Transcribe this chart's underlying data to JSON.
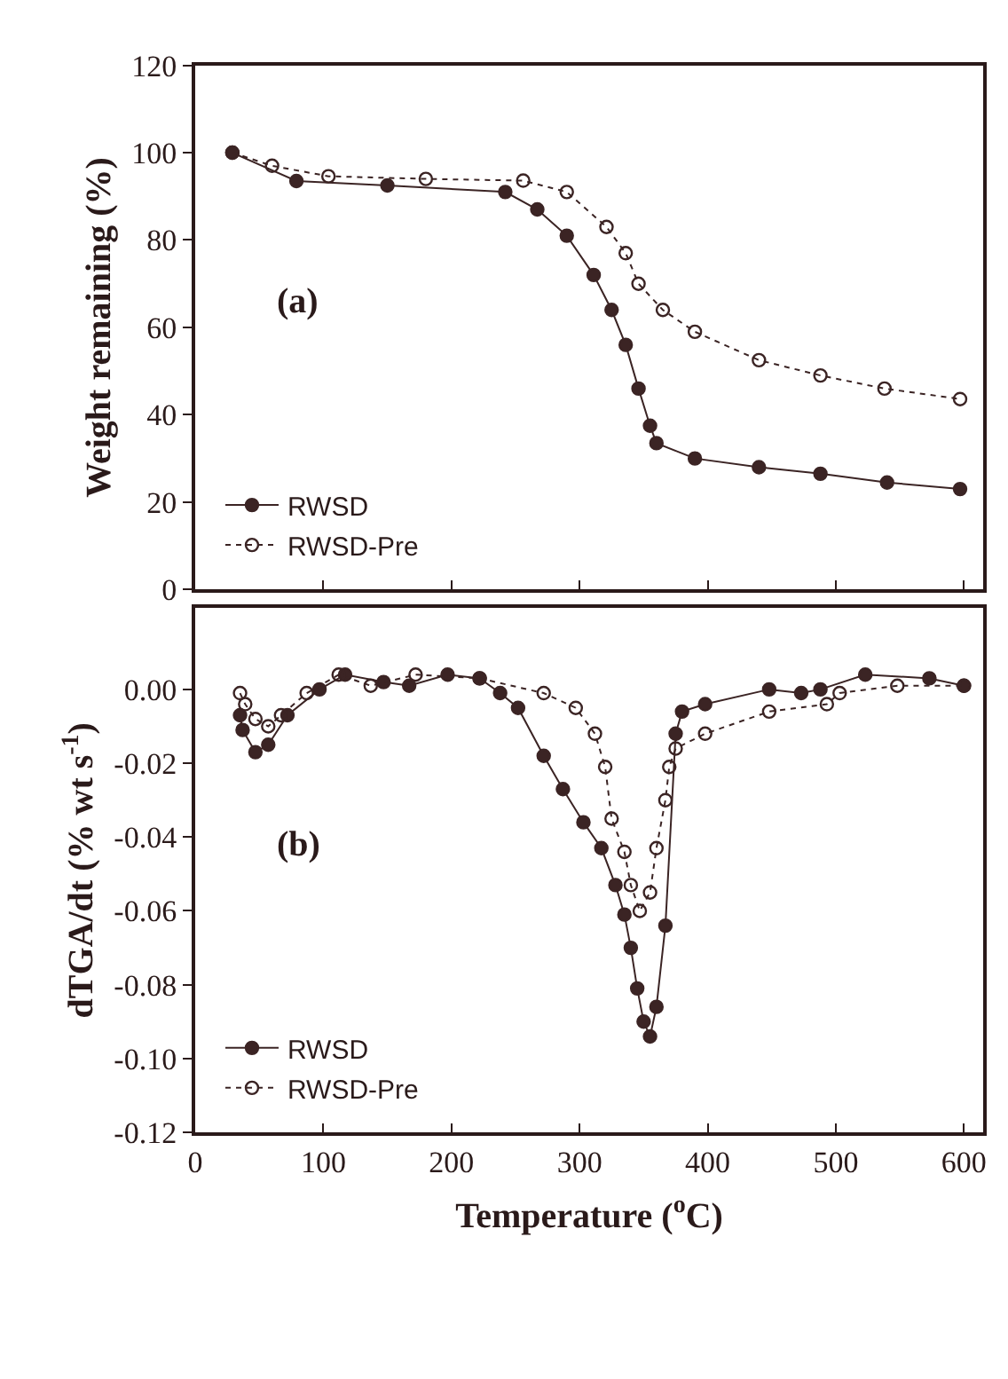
{
  "chart_data": [
    {
      "type": "line",
      "ylabel": "Weight remaining (%)",
      "annotations": [
        "(a)"
      ],
      "xlim": [
        0,
        615
      ],
      "xticks": [
        0,
        100,
        200,
        300,
        400,
        500,
        600
      ],
      "ylim": [
        0,
        120
      ],
      "yticks": [
        0,
        20,
        40,
        60,
        80,
        100,
        120
      ],
      "tick_labels": "y",
      "legend": "bottom left",
      "series": [
        {
          "name": "RWSD",
          "color": "#3b2424",
          "marker": "circle",
          "line_style": "solid",
          "x": [
            29,
            79,
            150,
            242,
            267,
            290,
            311,
            325,
            336,
            346,
            355,
            360,
            390,
            440,
            488,
            540,
            597
          ],
          "values": [
            100,
            93.5,
            92.5,
            91,
            87,
            81,
            72,
            64,
            56,
            46,
            37.5,
            33.5,
            30,
            28,
            26.5,
            24.5,
            23
          ]
        },
        {
          "name": "RWSD-Pre",
          "color": "#3b2424",
          "marker": "circle-open",
          "line_style": "dotted",
          "x": [
            29,
            60,
            104,
            180,
            256,
            290,
            321,
            336,
            346,
            365,
            390,
            440,
            488,
            538,
            597
          ],
          "values": [
            100,
            97,
            94.6,
            94,
            93.6,
            91,
            83,
            77,
            70,
            64,
            59,
            52.5,
            49,
            46,
            43.6
          ]
        }
      ]
    },
    {
      "type": "line",
      "xlabel": "Temperature ($^{o}$C)",
      "ylabel": "dTGA/dt (% wt s$^{-1}$)",
      "annotations": [
        "(b)"
      ],
      "xlim": [
        0,
        615
      ],
      "xticks": [
        0,
        100,
        200,
        300,
        400,
        500,
        600
      ],
      "ylim": [
        -0.12,
        0.022
      ],
      "yticks": [
        {
          "value": 0,
          "label": "0.00"
        },
        {
          "value": -0.02,
          "label": "-0.02"
        },
        {
          "value": -0.04,
          "label": "-0.04"
        },
        {
          "value": -0.06,
          "label": "-0.06"
        },
        {
          "value": -0.08,
          "label": "-0.08"
        },
        {
          "value": -0.1,
          "label": "-0.10"
        },
        {
          "value": -0.12,
          "label": "-0.12"
        }
      ],
      "legend": "bottom left",
      "series": [
        {
          "name": "RWSD",
          "color": "#3b2424",
          "marker": "circle",
          "line_style": "solid",
          "x": [
            35,
            37,
            47,
            57,
            72,
            97,
            117,
            147,
            167,
            197,
            222,
            238,
            252,
            272,
            287,
            303,
            317,
            328,
            335,
            340,
            345,
            350,
            355,
            360,
            367,
            375,
            380,
            398,
            448,
            473,
            488,
            523,
            573,
            600
          ],
          "values": [
            -0.007,
            -0.011,
            -0.017,
            -0.015,
            -0.007,
            0.0,
            0.004,
            0.002,
            0.001,
            0.004,
            0.003,
            -0.001,
            -0.005,
            -0.018,
            -0.027,
            -0.036,
            -0.043,
            -0.053,
            -0.061,
            -0.07,
            -0.081,
            -0.09,
            -0.094,
            -0.086,
            -0.064,
            -0.012,
            -0.006,
            -0.004,
            0.0,
            -0.001,
            0.0,
            0.004,
            0.003,
            0.001
          ]
        },
        {
          "name": "RWSD-Pre",
          "color": "#3b2424",
          "marker": "circle-open",
          "line_style": "dotted",
          "x": [
            35,
            39,
            47,
            57,
            67,
            87,
            112,
            137,
            172,
            222,
            272,
            297,
            312,
            320,
            325,
            335,
            340,
            347,
            355,
            360,
            367,
            370,
            375,
            398,
            448,
            493,
            503,
            548,
            600
          ],
          "values": [
            -0.001,
            -0.004,
            -0.008,
            -0.01,
            -0.007,
            -0.001,
            0.004,
            0.001,
            0.004,
            0.003,
            -0.001,
            -0.005,
            -0.012,
            -0.021,
            -0.035,
            -0.044,
            -0.053,
            -0.06,
            -0.055,
            -0.043,
            -0.03,
            -0.021,
            -0.016,
            -0.012,
            -0.006,
            -0.004,
            -0.001,
            0.001,
            0.001
          ]
        }
      ]
    }
  ]
}
